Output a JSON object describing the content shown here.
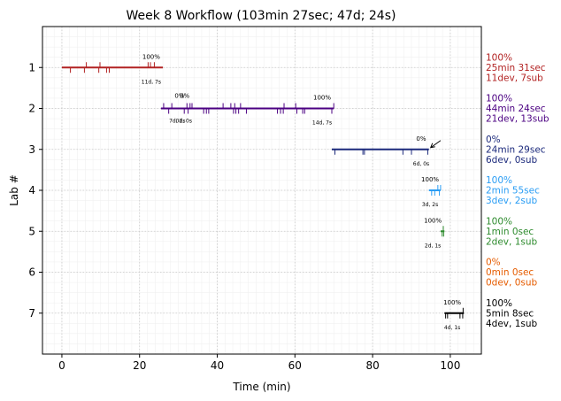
{
  "chart_data": {
    "type": "timeline",
    "title": "Week 8 Workflow (103min 27sec; 47d; 24s)",
    "xlabel": "Time (min)",
    "ylabel": "Lab #",
    "xlim": [
      -5,
      108
    ],
    "ylim": [
      8,
      0
    ],
    "xticks": [
      0,
      20,
      40,
      60,
      80,
      100
    ],
    "yticks": [
      1,
      2,
      3,
      4,
      5,
      6,
      7
    ],
    "grid": true,
    "labs": [
      {
        "lab": 1,
        "color": "#b22222",
        "start": 0,
        "end": 26,
        "pct_label": "100%",
        "pct_x": 23,
        "dev_label": "11d, 7s",
        "down_ticks": [
          2.2,
          5.8,
          9.5,
          11.5,
          12.2
        ],
        "up_ticks": [
          6.3,
          9.8,
          22.2,
          22.8,
          23.8
        ],
        "summary": [
          "100%",
          "25min 31sec",
          "11dev, 7sub"
        ]
      },
      {
        "lab": 2,
        "color": "#4b0082",
        "start": 25.5,
        "end": 70,
        "pct_label": "100%",
        "pct_x": 67,
        "dev_label": "14d, 7s",
        "extra_labels": [
          {
            "text": "0%",
            "x": 30.3,
            "y_off": -12
          },
          {
            "text": "0%",
            "x": 31.6,
            "y_off": -12
          },
          {
            "text": "7d, 2s",
            "x": 29.7,
            "y_off": 16
          },
          {
            "text": "0d, 0s",
            "x": 31.4,
            "y_off": 16
          }
        ],
        "down_ticks": [
          27.5,
          31.5,
          32.5,
          36.5,
          37.2,
          37.8,
          44.2,
          44.8,
          45.5,
          47.5,
          55.5,
          56.3,
          57.0,
          60.5,
          62.0,
          62.5,
          69.5
        ],
        "up_ticks": [
          26.2,
          28.3,
          32.2,
          33.0,
          33.5,
          41.5,
          43.5,
          44.5,
          46.0,
          57.2,
          60.2,
          70.0
        ],
        "summary": [
          "100%",
          "44min 24sec",
          "21dev, 13sub"
        ]
      },
      {
        "lab": 3,
        "color": "#1c2a7c",
        "start": 69.5,
        "end": 94.5,
        "pct_label": "0%",
        "pct_x": 92.5,
        "dev_label": "6d, 0s",
        "arrow": {
          "from_x": 97.5,
          "to_x": 94.5
        },
        "down_ticks": [
          70.3,
          77.5,
          77.9,
          87.8,
          90.0,
          94.2
        ],
        "up_ticks": [],
        "summary": [
          "0%",
          "24min 29sec",
          "6dev, 0sub"
        ]
      },
      {
        "lab": 4,
        "color": "#2a9df4",
        "start": 94.5,
        "end": 97.5,
        "pct_label": "100%",
        "pct_x": 94.8,
        "dev_label": "3d, 2s",
        "down_ticks": [
          95.2,
          96.0,
          97.2
        ],
        "up_ticks": [
          96.8,
          97.5
        ],
        "summary": [
          "100%",
          "2min 55sec",
          "3dev, 2sub"
        ]
      },
      {
        "lab": 5,
        "color": "#2e8b2e",
        "start": 97.5,
        "end": 98.5,
        "pct_label": "100%",
        "pct_x": 95.5,
        "dev_label": "2d, 1s",
        "down_ticks": [
          97.9,
          98.3
        ],
        "up_ticks": [
          98.2
        ],
        "summary": [
          "100%",
          "1min 0sec",
          "2dev, 1sub"
        ]
      },
      {
        "lab": 6,
        "color": "#e65c00",
        "start": null,
        "end": null,
        "pct_label": "",
        "pct_x": null,
        "dev_label": "",
        "down_ticks": [],
        "up_ticks": [],
        "summary": [
          "0%",
          "0min 0sec",
          "0dev, 0sub"
        ]
      },
      {
        "lab": 7,
        "color": "#000000",
        "start": 98.5,
        "end": 103.5,
        "pct_label": "100%",
        "pct_x": 100.5,
        "dev_label": "4d, 1s",
        "down_ticks": [
          98.8,
          99.3,
          102.5,
          103.2
        ],
        "up_ticks": [
          103.3
        ],
        "summary": [
          "100%",
          "5min 8sec",
          "4dev, 1sub"
        ]
      }
    ]
  }
}
